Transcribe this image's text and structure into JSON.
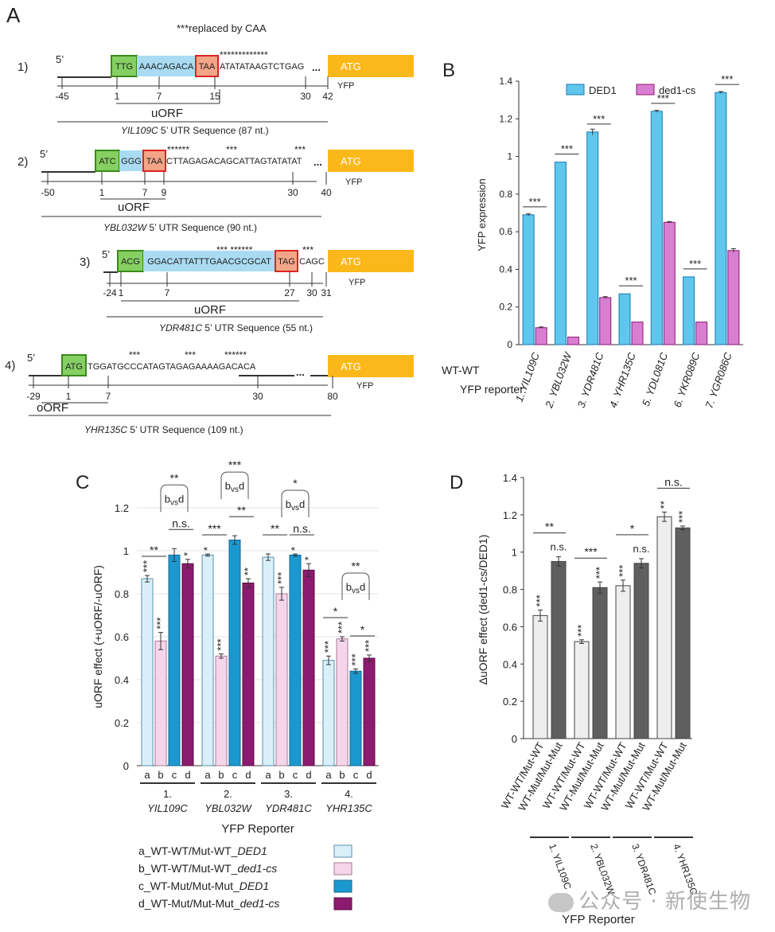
{
  "panelA": {
    "letter": "A",
    "replaced_note": "***replaced by CAA",
    "constructs": [
      {
        "num": "1)",
        "five": "5’",
        "start": "TTG",
        "uorf_seq": "AAACAGACA",
        "stop": "TAA",
        "tail": "ATATATAAGTCTGAG",
        "dots": "...",
        "atg": "ATG",
        "yfp": "YFP",
        "stars": "*************",
        "pos": [
          "-45",
          "1",
          "7",
          "15",
          "30",
          "42"
        ],
        "orf_label": "uORF",
        "gene": "YIL109C",
        "seq_label": " 5’ UTR Sequence (87 nt.)"
      },
      {
        "num": "2)",
        "five": "5’",
        "start": "ATC",
        "uorf_seq": "GGG",
        "stop": "TAA",
        "tail": "CTTAGAGACAGCATTAGTATATAT",
        "dots": "...",
        "atg": "ATG",
        "yfp": "YFP",
        "stars": [
          "******",
          "***",
          "***"
        ],
        "pos": [
          "-50",
          "1",
          "7",
          "9",
          "30",
          "40"
        ],
        "orf_label": "uORF",
        "gene": "YBL032W",
        "seq_label": " 5’ UTR Sequence (90 nt.)"
      },
      {
        "num": "3)",
        "five": "5’",
        "start": "ACG",
        "uorf_seq": "GGACATTATTTGAACGCGCAT",
        "stop": "TAG",
        "tail": "CAGC",
        "atg": "ATG",
        "yfp": "YFP",
        "stars": [
          "*** ******",
          "***"
        ],
        "pos": [
          "-24",
          "1",
          "7",
          "27",
          "30",
          "31"
        ],
        "orf_label": "uORF",
        "gene": "YDR481C",
        "seq_label": " 5’ UTR Sequence (55 nt.)"
      },
      {
        "num": "4)",
        "five": "5’",
        "start": "ATG",
        "tail": "TGGATGCCCATAGTAGAGAAAAGACACA",
        "dots": "...",
        "atg": "ATG",
        "yfp": "YFP",
        "stars": [
          "***",
          "***",
          "******"
        ],
        "pos": [
          "-29",
          "1",
          "7",
          "30",
          "80"
        ],
        "orf_label": "oORF",
        "gene": "YHR135C",
        "seq_label": " 5’ UTR Sequence (109 nt.)"
      }
    ]
  },
  "chart_data": [
    {
      "panel": "B",
      "type": "bar",
      "ylabel": "YFP expression",
      "ylim": [
        0,
        1.4
      ],
      "yticks": [
        "0",
        "0.2",
        "0.4",
        "0.6",
        "0.8",
        "1",
        "1.2",
        "1.4"
      ],
      "categories": [
        "1. YIL109C",
        "2. YBL032W",
        "3. YDR481C",
        "4. YHR135C",
        "5. YDL081C",
        "6. YKR089C",
        "7. YGR086C"
      ],
      "series": [
        {
          "name": "DED1",
          "values": [
            0.69,
            0.97,
            1.13,
            0.27,
            1.24,
            0.36,
            1.34
          ],
          "errors": [
            0.005,
            0.0,
            0.015,
            0.0,
            0.005,
            0.0,
            0.005
          ]
        },
        {
          "name": "ded1-cs",
          "values": [
            0.09,
            0.04,
            0.25,
            0.12,
            0.65,
            0.12,
            0.5
          ],
          "errors": [
            0.004,
            0.0,
            0.005,
            0.0,
            0.004,
            0.0,
            0.01
          ]
        }
      ],
      "significance": [
        "***",
        "***",
        "***",
        "***",
        "***",
        "***",
        "***"
      ],
      "row_labels": [
        "WT-WT",
        "YFP reporter:"
      ],
      "legend": "top"
    },
    {
      "panel": "C",
      "type": "bar",
      "ylabel": "uORF effect (+uORF/-uORF)",
      "xlabel": "YFP Reporter",
      "ylim": [
        0,
        1.2
      ],
      "yticks": [
        "0",
        "0.2",
        "0.4",
        "0.6",
        "0.8",
        "1",
        "1.2"
      ],
      "groups": [
        {
          "num": "1.",
          "gene": "YIL109C",
          "values": [
            0.87,
            0.58,
            0.98,
            0.94
          ],
          "errors": [
            0.015,
            0.04,
            0.03,
            0.02
          ],
          "bar_stars": [
            "***",
            "***",
            "",
            "*"
          ],
          "pair_ab": "**",
          "pair_cd": "n.s.",
          "bvsd": "**"
        },
        {
          "num": "2.",
          "gene": "YBL032W",
          "values": [
            0.98,
            0.51,
            1.05,
            0.85
          ],
          "errors": [
            0.005,
            0.01,
            0.02,
            0.02
          ],
          "bar_stars": [
            "*",
            "***",
            "",
            "**"
          ],
          "pair_ab": "***",
          "pair_cd": "**",
          "bvsd": "***"
        },
        {
          "num": "3.",
          "gene": "YDR481C",
          "values": [
            0.97,
            0.8,
            0.98,
            0.91
          ],
          "errors": [
            0.015,
            0.03,
            0.005,
            0.03
          ],
          "bar_stars": [
            "",
            "***",
            "*",
            "*"
          ],
          "pair_ab": "**",
          "pair_cd": "n.s.",
          "bvsd": "*"
        },
        {
          "num": "4.",
          "gene": "YHR135C",
          "values": [
            0.49,
            0.59,
            0.44,
            0.5
          ],
          "errors": [
            0.02,
            0.01,
            0.01,
            0.015
          ],
          "bar_stars": [
            "***",
            "***",
            "***",
            "***"
          ],
          "pair_ab": "*",
          "pair_cd": "*",
          "bvsd": "**"
        }
      ],
      "bar_letters": [
        "a",
        "b",
        "c",
        "d"
      ],
      "bvsd_label": [
        "b",
        "vs",
        "d"
      ],
      "legend": [
        {
          "prefix": "a_WT-WT/Mut-WT_",
          "strain": "DED1",
          "color": "#d9f0fa"
        },
        {
          "prefix": "b_WT-WT/Mut-WT_",
          "strain": "ded1-cs",
          "color": "#f5d5ea"
        },
        {
          "prefix": "c_WT-Mut/Mut-Mut_",
          "strain": "DED1",
          "color": "#1b98cf"
        },
        {
          "prefix": "d_WT-Mut/Mut-Mut_",
          "strain": "ded1-cs",
          "color": "#8c1a6e"
        }
      ]
    },
    {
      "panel": "D",
      "type": "bar",
      "ylabel": "ΔuORF effect (ded1-cs/DED1)",
      "xlabel": "YFP Reporter",
      "ylim": [
        0,
        1.4
      ],
      "yticks": [
        "0",
        "0.2",
        "0.4",
        "0.6",
        "0.8",
        "1",
        "1.2",
        "1.4"
      ],
      "bar_labels": [
        "WT-WT/Mut-WT",
        "WT-Mut/Mut-Mut"
      ],
      "groups": [
        {
          "gene": "1. YIL109C",
          "values": [
            0.66,
            0.95
          ],
          "errors": [
            0.03,
            0.025
          ],
          "bar_stars": [
            "***",
            "n.s."
          ],
          "pair": "**"
        },
        {
          "gene": "2. YBL032W",
          "values": [
            0.52,
            0.81
          ],
          "errors": [
            0.01,
            0.03
          ],
          "bar_stars": [
            "***",
            "***"
          ],
          "pair": "***"
        },
        {
          "gene": "3. YDR481C",
          "values": [
            0.82,
            0.94
          ],
          "errors": [
            0.03,
            0.025
          ],
          "bar_stars": [
            "***",
            "n.s."
          ],
          "pair": "*"
        },
        {
          "gene": "4. YHR135C",
          "values": [
            1.19,
            1.13
          ],
          "errors": [
            0.025,
            0.01
          ],
          "bar_stars": [
            "**",
            "***"
          ],
          "pair": "n.s."
        }
      ],
      "colors": [
        "#eeeeee",
        "#5f5f5f"
      ]
    }
  ],
  "letters": {
    "B": "B",
    "C": "C",
    "D": "D"
  },
  "watermark": "公众号 · 新使生物"
}
